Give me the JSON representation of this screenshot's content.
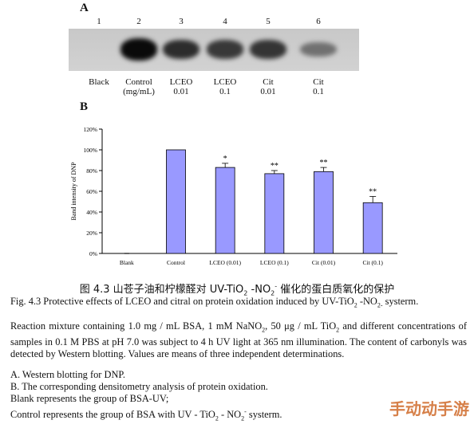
{
  "panel_a": {
    "letter": "A",
    "lanes": [
      {
        "number": "1",
        "label_line1": "Black",
        "label_line2": "",
        "intensity": 0.0
      },
      {
        "number": "2",
        "label_line1": "Control",
        "label_line2": "(mg/mL)",
        "intensity": 1.0
      },
      {
        "number": "3",
        "label_line1": "LCEO",
        "label_line2": "0.01",
        "intensity": 0.83
      },
      {
        "number": "4",
        "label_line1": "LCEO",
        "label_line2": "0.1",
        "intensity": 0.77
      },
      {
        "number": "5",
        "label_line1": "Cit",
        "label_line2": "0.01",
        "intensity": 0.79
      },
      {
        "number": "6",
        "label_line1": "Cit",
        "label_line2": "0.1",
        "intensity": 0.49
      }
    ]
  },
  "panel_b": {
    "letter": "B"
  },
  "chart_data": {
    "type": "bar",
    "categories": [
      "Blank",
      "Control",
      "LCEO (0.01)",
      "LCEO (0.1)",
      "Cit (0.01)",
      "Cit (0.1)"
    ],
    "values": [
      0,
      100,
      83,
      77,
      79,
      49
    ],
    "errors": [
      0,
      0,
      4,
      3,
      4,
      6
    ],
    "significance": [
      "",
      "",
      "*",
      "**",
      "**",
      "**"
    ],
    "ylabel": "Band intensity of DNP",
    "ylim": [
      0,
      120
    ],
    "yticks": [
      "0%",
      "20%",
      "40%",
      "60%",
      "80%",
      "100%",
      "120%"
    ],
    "bar_color": "#9999ff",
    "grid": false
  },
  "caption_cn": {
    "before": "图 4.3  山苍子油和柠檬醛对 UV-TiO",
    "sub": "2",
    "mid": " -NO",
    "sub2": "2",
    "sup": "-",
    "after": " 催化的蛋白质氧化的保护"
  },
  "caption_en": {
    "part1": "Fig. 4.3 Protective effects of LCEO and citral on protein oxidation induced by UV-TiO",
    "sub1": "2",
    "part2": " -NO",
    "sub2": "2",
    "sub3": "-",
    "part3": " systerm."
  },
  "methods": {
    "part1": "Reaction mixture containing 1.0 mg / mL BSA, 1 mM NaNO",
    "sub1": "2",
    "part2": ", 50 μg / mL TiO",
    "sub2": "2",
    "part3": " and different concentrations of samples in 0.1 M PBS at pH 7.0 was subject to 4 h UV light at 365 nm illumination. The content of carbonyls was detected by Western blotting. Values are means of three independent determinations."
  },
  "notes": {
    "a": "A. Western blotting for DNP.",
    "b": "B. The corresponding densitometry analysis of protein oxidation.",
    "blank": "Blank represents the group of BSA-UV;",
    "control_part1": "Control represents the group of BSA with UV - TiO",
    "control_sub": "2",
    "control_part2": " - NO",
    "control_sub2": "2",
    "control_sup": "-",
    "control_part3": " systerm."
  },
  "watermark": "手动动手游"
}
